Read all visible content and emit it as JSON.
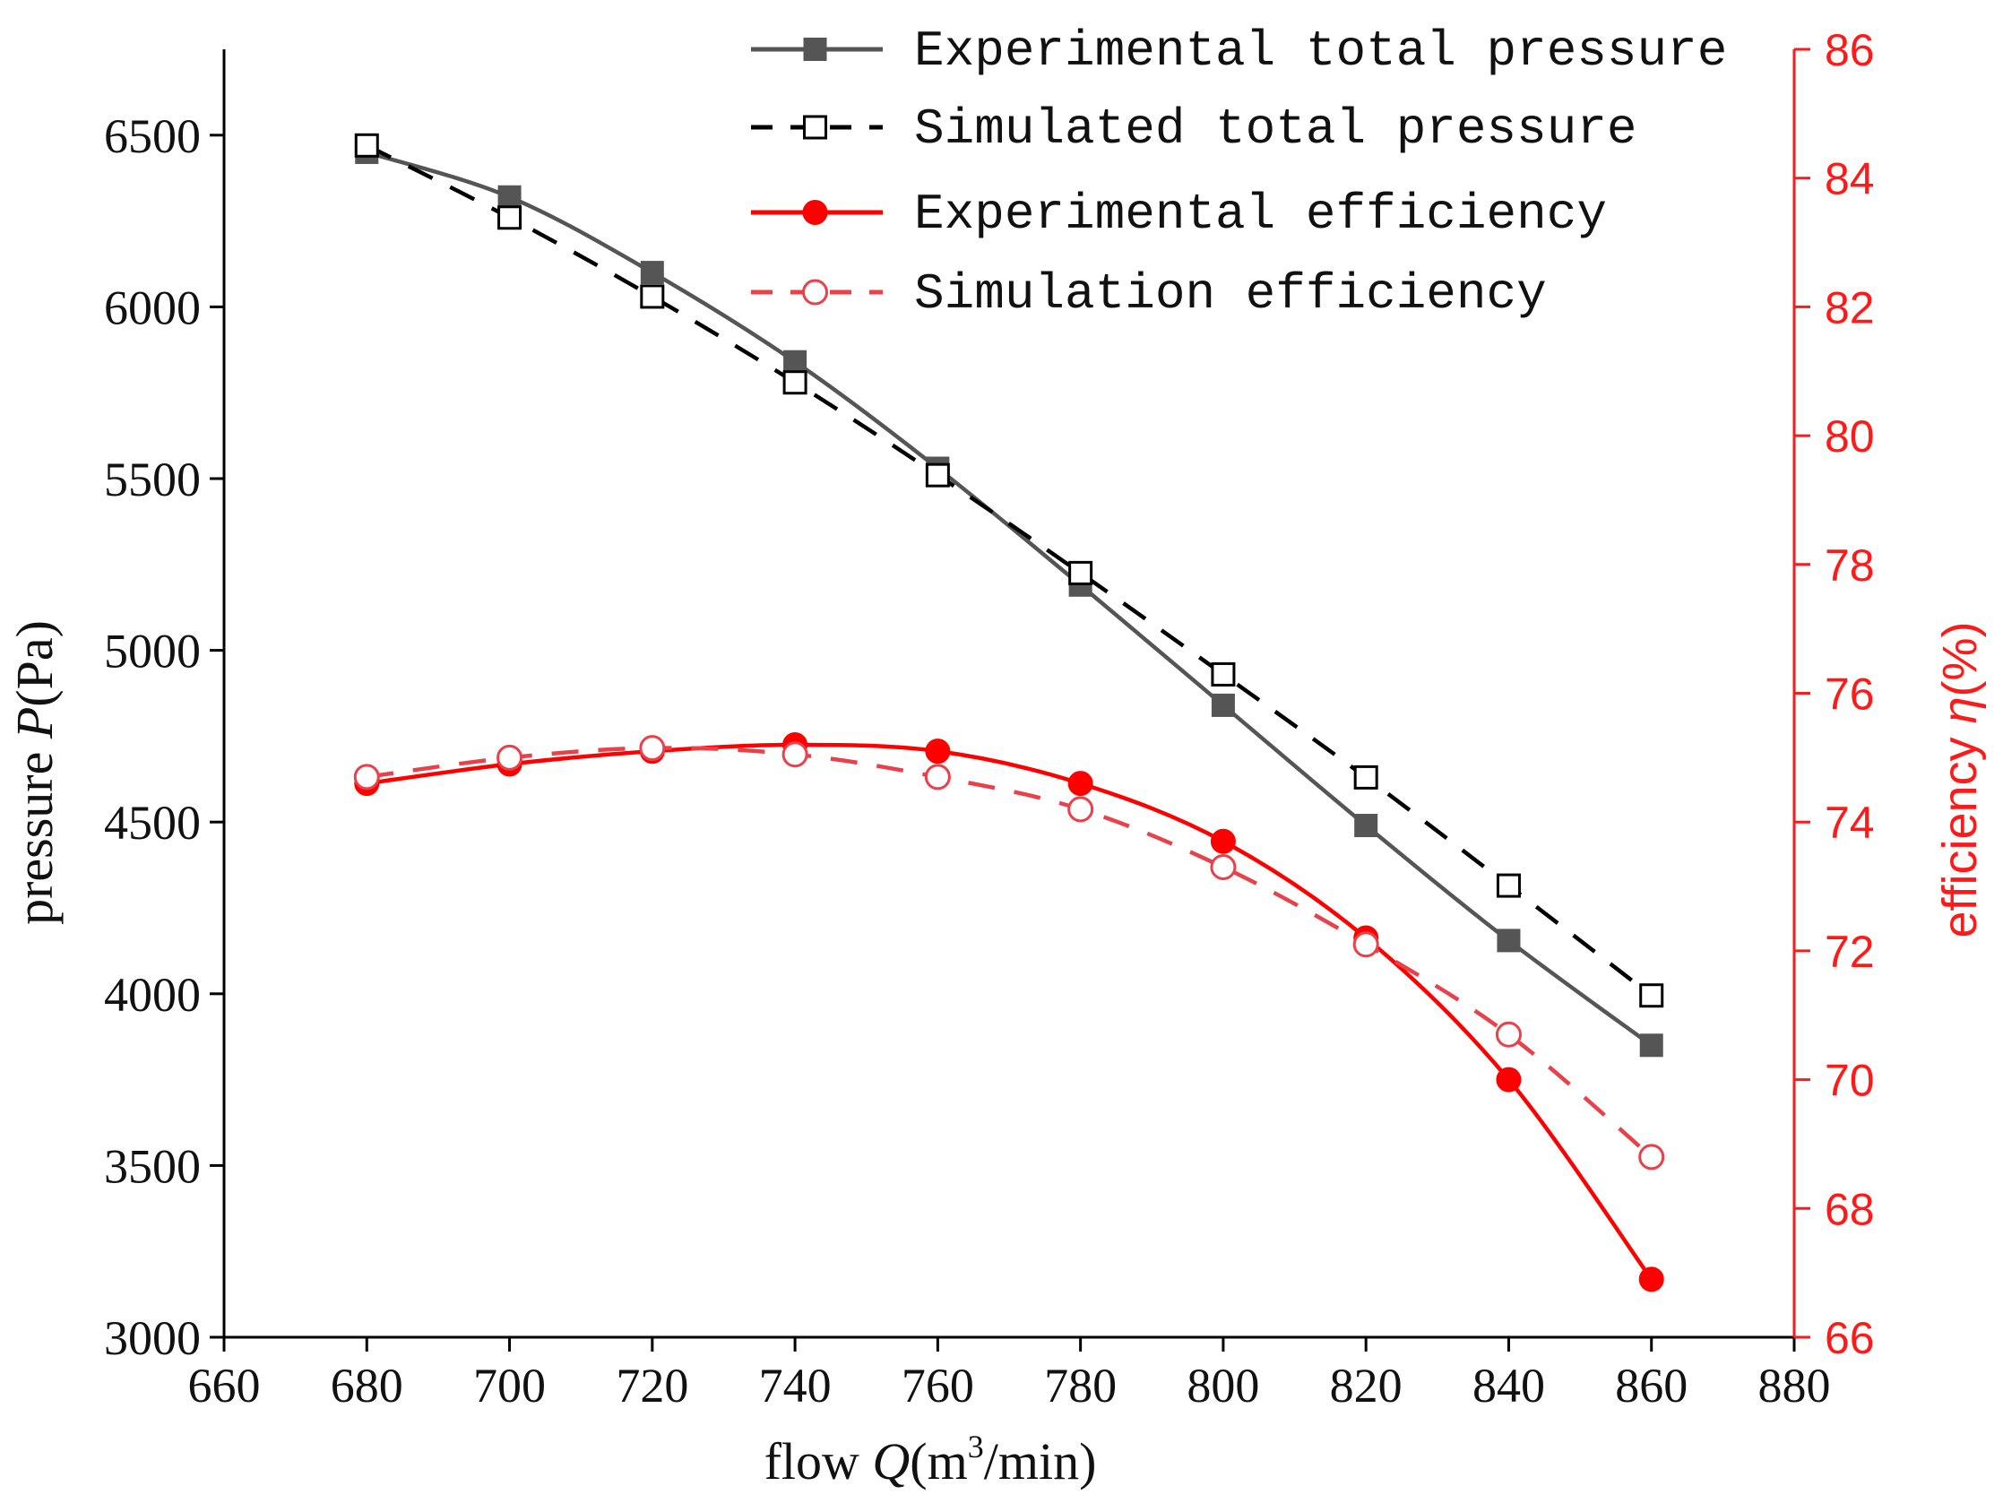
{
  "colors": {
    "left_axis": "#000000",
    "right_axis": "#ff1a1a",
    "exp_pressure": "#555555",
    "sim_pressure": "#000000",
    "exp_efficiency": "#ff0000",
    "sim_efficiency": "#e8414a"
  },
  "chart_data": {
    "type": "line",
    "x": [
      680,
      700,
      720,
      740,
      760,
      780,
      800,
      820,
      840,
      860
    ],
    "xlim": [
      660,
      880
    ],
    "xticks": [
      660,
      680,
      700,
      720,
      740,
      760,
      780,
      800,
      820,
      840,
      860,
      880
    ],
    "xlabel": {
      "prefix": "flow ",
      "var": "Q",
      "unit_open": "(m",
      "sup": "3",
      "unit_close": "/min)"
    },
    "ylim_left": [
      3000,
      6750
    ],
    "yticks_left": [
      3000,
      3500,
      4000,
      4500,
      5000,
      5500,
      6000,
      6500
    ],
    "ylabel_left": {
      "prefix": "pressure ",
      "var": "P",
      "unit": "(Pa)"
    },
    "ylim_right": [
      66,
      86
    ],
    "yticks_right": [
      66,
      68,
      70,
      72,
      74,
      76,
      78,
      80,
      82,
      84,
      86
    ],
    "ylabel_right": {
      "prefix": "efficiency ",
      "var": "η",
      "unit": "(%)"
    },
    "series": [
      {
        "name": "Experimental total pressure",
        "axis": "left",
        "values": [
          6450,
          6320,
          6100,
          5840,
          5530,
          5190,
          4840,
          4490,
          4155,
          3850
        ]
      },
      {
        "name": "Simulated total pressure",
        "axis": "left",
        "values": [
          6470,
          6260,
          6030,
          5780,
          5510,
          5225,
          4930,
          4630,
          4315,
          3995
        ]
      },
      {
        "name": "Experimental efficiency",
        "axis": "right",
        "values": [
          74.6,
          74.9,
          75.1,
          75.2,
          75.1,
          74.6,
          73.7,
          72.2,
          70.0,
          66.9
        ]
      },
      {
        "name": "Simulation efficiency",
        "axis": "right",
        "values": [
          74.7,
          75.0,
          75.15,
          75.05,
          74.7,
          74.2,
          73.3,
          72.1,
          70.7,
          68.8
        ]
      }
    ]
  }
}
